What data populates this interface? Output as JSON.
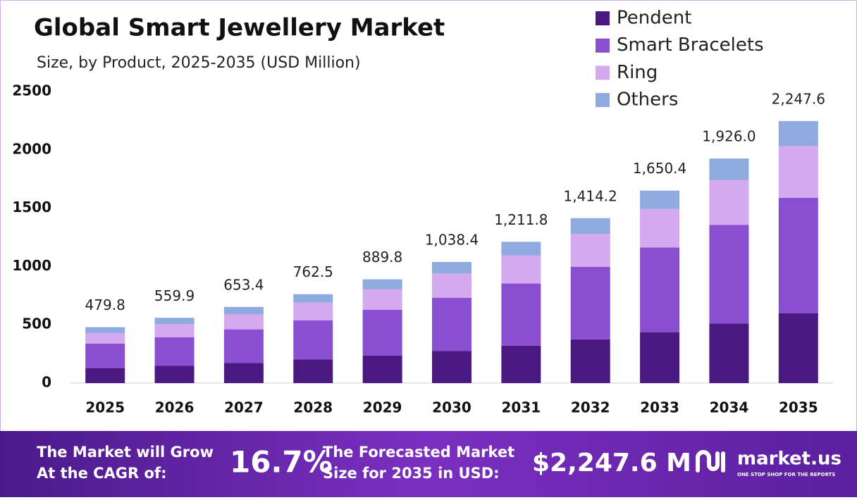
{
  "chart_data": {
    "type": "stacked-bar",
    "title": "Global Smart Jewellery Market",
    "subtitle": "Size, by Product, 2025-2035 (USD Million)",
    "categories": [
      "2025",
      "2026",
      "2027",
      "2028",
      "2029",
      "2030",
      "2031",
      "2032",
      "2033",
      "2034",
      "2035"
    ],
    "series": [
      {
        "name": "Pendent",
        "color": "#4b1882",
        "values": [
          127,
          148,
          173,
          202,
          236,
          275,
          321,
          375,
          437,
          510,
          598
        ]
      },
      {
        "name": "Smart Bracelets",
        "color": "#8a4fd0",
        "values": [
          211,
          246,
          288,
          336,
          392,
          457,
          533,
          622,
          726,
          847,
          991
        ]
      },
      {
        "name": "Ring",
        "color": "#d4a9ee",
        "values": [
          91,
          112,
          131,
          152,
          178,
          208,
          242,
          283,
          330,
          385,
          446
        ]
      },
      {
        "name": "Others",
        "color": "#8faadf",
        "values": [
          50.8,
          53.9,
          61.4,
          72.5,
          83.8,
          98.4,
          115.8,
          134.2,
          157.4,
          184,
          212.6
        ]
      }
    ],
    "totals": [
      479.8,
      559.9,
      653.4,
      762.5,
      889.8,
      1038.4,
      1211.8,
      1414.2,
      1650.4,
      1926.0,
      2247.6
    ],
    "total_labels": [
      "479.8",
      "559.9",
      "653.4",
      "762.5",
      "889.8",
      "1,038.4",
      "1,211.8",
      "1,414.2",
      "1,650.4",
      "1,926.0",
      "2,247.6"
    ],
    "ylim": [
      0,
      2500
    ],
    "yticks": [
      0,
      500,
      1000,
      1500,
      2000,
      2500
    ],
    "legend": "top-right",
    "footer": {
      "cagr_text": [
        "The Market will Grow",
        "At the CAGR of:"
      ],
      "cagr": "16.7%",
      "forecast_text": [
        "The Forecasted Market",
        "Size for 2035 in USD:"
      ],
      "forecast": "$2,247.6 M",
      "brand": "market.us",
      "tagline": "ONE STOP SHOP FOR THE REPORTS"
    }
  }
}
